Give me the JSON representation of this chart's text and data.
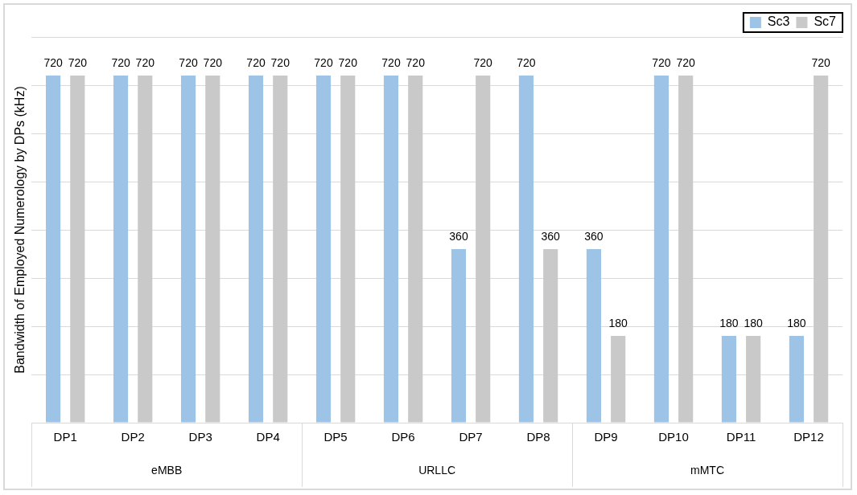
{
  "chart_data": {
    "type": "bar",
    "ylabel": "Bandwidth of Employed Numerology by DPs (kHz)",
    "categories": [
      "DP1",
      "DP2",
      "DP3",
      "DP4",
      "DP5",
      "DP6",
      "DP7",
      "DP8",
      "DP9",
      "DP10",
      "DP11",
      "DP12"
    ],
    "series": [
      {
        "name": "Sc3",
        "color": "#9dc3e6",
        "values": [
          720,
          720,
          720,
          720,
          720,
          720,
          360,
          720,
          360,
          720,
          180,
          180
        ]
      },
      {
        "name": "Sc7",
        "color": "#c9c9c9",
        "values": [
          720,
          720,
          720,
          720,
          720,
          720,
          720,
          360,
          180,
          720,
          180,
          720
        ]
      }
    ],
    "tick_labels": "x",
    "grid": "y",
    "legend": "top right",
    "data_labels": true,
    "annotations": [
      "eMBB",
      "URLLC",
      "mMTC"
    ]
  }
}
